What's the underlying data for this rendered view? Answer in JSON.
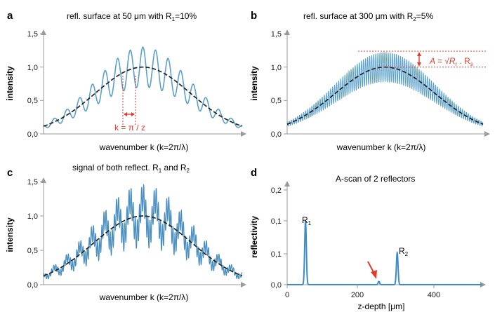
{
  "colors": {
    "signal": "#5aa0cb",
    "envelope": "#222222",
    "axis": "#9a9a9a",
    "annotation": "#e23b2e",
    "text": "#1a1a1a"
  },
  "chart_data": [
    {
      "panel": "a",
      "type": "line",
      "title": "refl. surface at 50 µm with R₁=10%",
      "xlabel": "wavenumber k (k=2π/λ)",
      "ylabel": "intensity",
      "ylim": [
        0.0,
        1.5
      ],
      "yticks": [
        "0,0",
        "0,5",
        "1,0",
        "1,5"
      ],
      "x_ticks_labeled": false,
      "grid": false,
      "series": [
        {
          "style": "solid-blue",
          "description_values": {
            "x": [
              0.0,
              0.06,
              0.12,
              0.18,
              0.24,
              0.3,
              0.36,
              0.42,
              0.48,
              0.5,
              0.54,
              0.6,
              0.66,
              0.72,
              0.78,
              0.84,
              0.9,
              0.96,
              1.0
            ],
            "y": [
              0.02,
              0.06,
              0.12,
              0.24,
              0.4,
              0.62,
              0.95,
              1.18,
              1.28,
              1.3,
              1.25,
              1.12,
              0.95,
              0.66,
              0.5,
              0.28,
              0.12,
              0.05,
              0.02
            ]
          }
        },
        {
          "style": "dashed-black",
          "description_values": {
            "x": [
              0.0,
              0.1,
              0.2,
              0.3,
              0.4,
              0.5,
              0.6,
              0.7,
              0.8,
              0.9,
              1.0
            ],
            "y": [
              0.04,
              0.12,
              0.3,
              0.58,
              0.87,
              1.0,
              0.87,
              0.58,
              0.3,
              0.12,
              0.04
            ]
          }
        }
      ],
      "annotations": [
        {
          "text": "k = π / z"
        }
      ]
    },
    {
      "panel": "b",
      "type": "line",
      "title": "refl. surface at 300 µm with R₂=5%",
      "xlabel": "wavenumber k (k=2π/λ)",
      "ylabel": "intensity",
      "ylim": [
        0.0,
        1.5
      ],
      "yticks": [
        "0,0",
        "0,5",
        "1,0",
        "1,5"
      ],
      "x_ticks_labeled": false,
      "grid": false,
      "series": [
        {
          "style": "dense-blue-oscillation",
          "envelope_peak": 1.22
        },
        {
          "style": "dashed-black",
          "peak": 1.0
        }
      ],
      "annotations": [
        {
          "text": "A = √Rᵣ . Rₛ"
        }
      ]
    },
    {
      "panel": "c",
      "type": "line",
      "title": "signal of both reflect. R₁ and R₂",
      "xlabel": "wavenumber k (k=2π/λ)",
      "ylabel": "intensity",
      "ylim": [
        0.0,
        1.5
      ],
      "yticks": [
        "0,0",
        "0,5",
        "1,0",
        "1,5"
      ],
      "x_ticks_labeled": false,
      "grid": false,
      "series": [
        {
          "style": "solid-blue-combined",
          "max": 1.5
        },
        {
          "style": "dashed-black",
          "peak": 1.0
        }
      ]
    },
    {
      "panel": "d",
      "type": "line",
      "title": "A-scan of 2 reflectors",
      "xlabel": "z-depth [µm]",
      "ylabel": "reflectivity",
      "xlim": [
        0,
        530
      ],
      "ylim": [
        0.0,
        0.2
      ],
      "yticks": [
        "0,0",
        "0,1",
        "0,1",
        "0,2"
      ],
      "xticks": [
        0,
        200,
        400
      ],
      "grid": false,
      "series": [
        {
          "style": "solid-blue",
          "peaks": [
            {
              "x": 50,
              "y": 0.1,
              "label": "R₁"
            },
            {
              "x": 250,
              "y": 0.005
            },
            {
              "x": 300,
              "y": 0.05,
              "label": "R₂"
            }
          ]
        }
      ],
      "annotations": [
        {
          "text": "",
          "arrow_to_x": 250
        }
      ]
    }
  ],
  "labels": {
    "a": "a",
    "b": "b",
    "c": "c",
    "d": "d",
    "title_a_pre": "refl. surface at 50 ",
    "title_a_mu": "μ",
    "title_a_post": "m with R",
    "title_a_sub": "1",
    "title_a_end": "=10%",
    "title_b_pre": "refl. surface at 300 ",
    "title_b_mu": "μ",
    "title_b_post": "m with R",
    "title_b_sub": "2",
    "title_b_end": "=5%",
    "title_c_pre": "signal of both reflect. R",
    "title_c_sub1": "1",
    "title_c_mid": " and R",
    "title_c_sub2": "2",
    "title_d": "A-scan of 2 reflectors",
    "k_label": "k = π / z",
    "A_label_pre": "A = √R",
    "A_label_sub1": "r",
    "A_label_mid": " . R",
    "A_label_sub2": "s",
    "R1": "R",
    "R1_sub": "1",
    "R2": "R",
    "R2_sub": "2",
    "xlabel_k": "wavenumber k (k=2π/λ)",
    "xlabel_z": "z-depth [μm]",
    "ylabel_int": "intensity",
    "ylabel_refl": "reflectivity",
    "ytick_int": [
      "0,0",
      "0,5",
      "1,0",
      "1,5"
    ],
    "ytick_refl": [
      "0,0",
      "0,1",
      "0,1",
      "0,2"
    ],
    "xtick_z": [
      "0",
      "200",
      "400"
    ]
  }
}
